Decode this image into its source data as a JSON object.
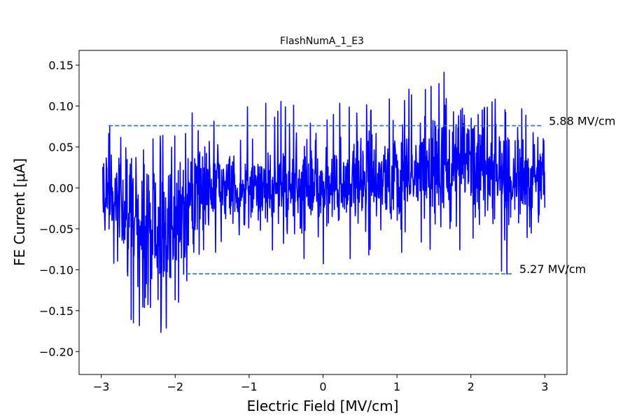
{
  "chart_data": {
    "type": "line",
    "title": "FlashNumA_1_E3",
    "xlabel": "Electric Field [MV/cm]",
    "ylabel": "FE Current [μA]",
    "xlim": [
      -3.3,
      3.3
    ],
    "ylim": [
      -0.228,
      0.168
    ],
    "xticks": [
      -3,
      -2,
      -1,
      0,
      1,
      2,
      3
    ],
    "xtick_labels": [
      "−3",
      "−2",
      "−1",
      "0",
      "1",
      "2",
      "3"
    ],
    "yticks": [
      -0.2,
      -0.15,
      -0.1,
      -0.05,
      0.0,
      0.05,
      0.1,
      0.15
    ],
    "ytick_labels": [
      "−0.20",
      "−0.15",
      "−0.10",
      "−0.05",
      "0.00",
      "0.05",
      "0.10",
      "0.15"
    ],
    "grid": false,
    "series": [
      {
        "color": "#0000ff",
        "style": "noisy-signal",
        "x_range": [
          -2.98,
          3.0
        ],
        "envelope": [
          {
            "x": -2.98,
            "upper": 0.05,
            "lower": -0.05,
            "peak_max": 0.11,
            "peak_min": -0.1
          },
          {
            "x": -2.6,
            "upper": 0.03,
            "lower": -0.09,
            "peak_max": 0.06,
            "peak_min": -0.17
          },
          {
            "x": -2.3,
            "upper": 0.02,
            "lower": -0.14,
            "peak_max": 0.06,
            "peak_min": -0.21
          },
          {
            "x": -2.0,
            "upper": 0.04,
            "lower": -0.1,
            "peak_max": 0.07,
            "peak_min": -0.15
          },
          {
            "x": -1.5,
            "upper": 0.05,
            "lower": -0.05,
            "peak_max": 0.12,
            "peak_min": -0.1
          },
          {
            "x": -1.0,
            "upper": 0.04,
            "lower": -0.05,
            "peak_max": 0.14,
            "peak_min": -0.09
          },
          {
            "x": 0.0,
            "upper": 0.04,
            "lower": -0.04,
            "peak_max": 0.1,
            "peak_min": -0.1
          },
          {
            "x": 1.0,
            "upper": 0.06,
            "lower": -0.03,
            "peak_max": 0.12,
            "peak_min": -0.08
          },
          {
            "x": 1.5,
            "upper": 0.08,
            "lower": -0.03,
            "peak_max": 0.15,
            "peak_min": -0.1
          },
          {
            "x": 2.0,
            "upper": 0.09,
            "lower": -0.03,
            "peak_max": 0.145,
            "peak_min": -0.09
          },
          {
            "x": 2.5,
            "upper": 0.06,
            "lower": -0.04,
            "peak_max": 0.1,
            "peak_min": -0.11
          },
          {
            "x": 3.0,
            "upper": 0.05,
            "lower": -0.03,
            "peak_max": 0.1,
            "peak_min": -0.06
          }
        ]
      }
    ],
    "hlines": [
      {
        "y": 0.076,
        "x_start": -2.9,
        "x_end": 2.97,
        "color": "#1f77b4",
        "dash": "dashed",
        "label": "5.88 MV/cm"
      },
      {
        "y": -0.105,
        "x_start": -1.85,
        "x_end": 2.57,
        "color": "#1f77b4",
        "dash": "dashed",
        "label": "5.27 MV/cm"
      }
    ]
  }
}
